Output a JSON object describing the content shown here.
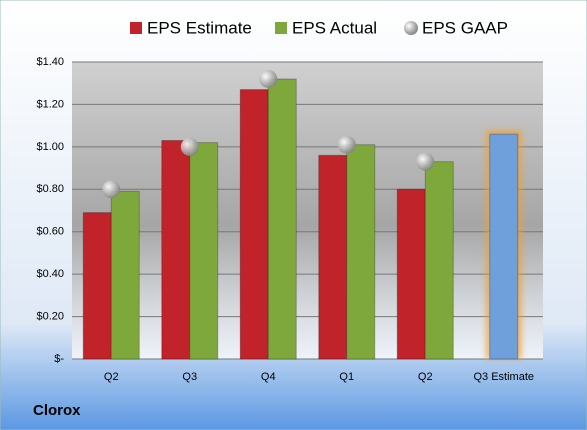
{
  "chart_data": {
    "type": "bar",
    "categories": [
      "Q2",
      "Q3",
      "Q4",
      "Q1",
      "Q2",
      "Q3 Estimate"
    ],
    "series": [
      {
        "name": "EPS Estimate",
        "color": "#c0242a",
        "values": [
          0.69,
          1.03,
          1.27,
          0.96,
          0.8,
          1.06
        ]
      },
      {
        "name": "EPS Actual",
        "color": "#7fa83c",
        "values": [
          0.79,
          1.02,
          1.32,
          1.01,
          0.93,
          null
        ]
      },
      {
        "name": "EPS GAAP",
        "color": "#a8a8a8",
        "type": "scatter",
        "values": [
          0.8,
          1.0,
          1.32,
          1.01,
          0.93,
          null
        ]
      }
    ],
    "highlight_color": "#6fa0dc",
    "ylim": [
      0,
      1.4
    ],
    "yticks": [
      {
        "value": 0,
        "label": "$-"
      },
      {
        "value": 0.2,
        "label": "$0.20"
      },
      {
        "value": 0.4,
        "label": "$0.40"
      },
      {
        "value": 0.6,
        "label": "$0.60"
      },
      {
        "value": 0.8,
        "label": "$0.80"
      },
      {
        "value": 1.0,
        "label": "$1.00"
      },
      {
        "value": 1.2,
        "label": "$1.20"
      },
      {
        "value": 1.4,
        "label": "$1.40"
      }
    ],
    "grid": true,
    "legend": "top",
    "footer": "Clorox"
  }
}
